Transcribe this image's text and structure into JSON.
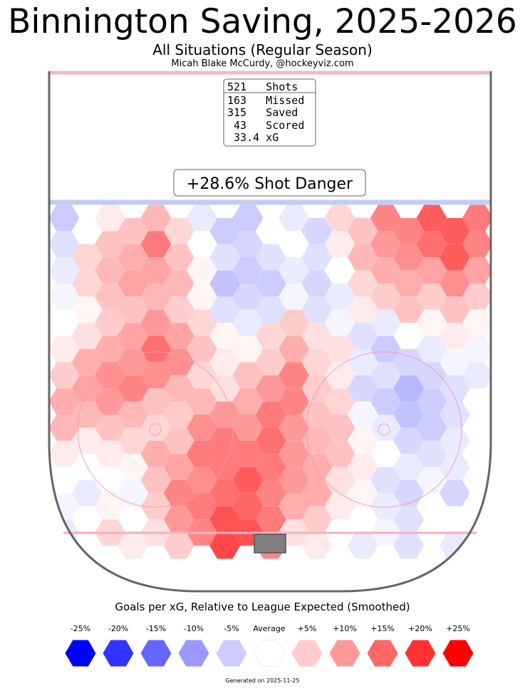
{
  "header": {
    "title": "Binnington Saving, 2025-2026",
    "subtitle": "All Situations (Regular Season)",
    "byline": "Micah Blake McCurdy, @hockeyviz.com"
  },
  "stats_box": {
    "rows": [
      "521   Shots",
      "163   Missed",
      "315   Saved",
      " 43   Scored",
      " 33.4 xG"
    ]
  },
  "danger_label": "+28.6% Shot Danger",
  "legend": {
    "title": "Goals per xG, Relative to League Expected (Smoothed)",
    "items": [
      {
        "label": "-25%",
        "color": "#0000ff"
      },
      {
        "label": "-20%",
        "color": "#3333ff"
      },
      {
        "label": "-15%",
        "color": "#6666ff"
      },
      {
        "label": "-10%",
        "color": "#9999ff"
      },
      {
        "label": "-5%",
        "color": "#ccccff"
      },
      {
        "label": "Average",
        "color": "#ffffff"
      },
      {
        "label": "+5%",
        "color": "#ffcccc"
      },
      {
        "label": "+10%",
        "color": "#ff9999"
      },
      {
        "label": "+15%",
        "color": "#ff6666"
      },
      {
        "label": "+20%",
        "color": "#ff3333"
      },
      {
        "label": "+25%",
        "color": "#ff0000"
      }
    ]
  },
  "footer": {
    "generated": "Generated on 2025-11-25"
  },
  "chart_data": {
    "type": "heatmap",
    "title": "Binnington Saving, 2025-2026",
    "metric": "Goals per xG, relative to league expected (smoothed), percent",
    "color_scale": {
      "min": -25,
      "max": 25,
      "neutral": 0
    },
    "columns": 19,
    "rows_per_col": 13,
    "values_by_column": [
      [
        -5,
        -3,
        -2,
        -1,
        0,
        2,
        5,
        8,
        7,
        2,
        0,
        -1,
        -2
      ],
      [
        0,
        4,
        4,
        1,
        3,
        8,
        9,
        7,
        2,
        0,
        -2,
        0,
        0
      ],
      [
        2,
        6,
        7,
        6,
        5,
        8,
        11,
        10,
        6,
        2,
        0,
        1,
        4
      ],
      [
        6,
        8,
        9,
        6,
        9,
        10,
        12,
        7,
        4,
        1,
        -1,
        0,
        2
      ],
      [
        7,
        13,
        9,
        7,
        10,
        14,
        11,
        6,
        4,
        8,
        6,
        5,
        3
      ],
      [
        4,
        6,
        7,
        5,
        9,
        11,
        7,
        5,
        6,
        9,
        12,
        10,
        5
      ],
      [
        -2,
        0,
        1,
        1,
        4,
        6,
        4,
        7,
        11,
        13,
        11,
        13,
        12
      ],
      [
        -5,
        -3,
        -6,
        -3,
        1,
        2,
        3,
        10,
        13,
        13,
        14,
        17,
        18
      ],
      [
        -5,
        -4,
        -5,
        -4,
        -2,
        1,
        6,
        8,
        10,
        13,
        16,
        15,
        17
      ],
      [
        0,
        -3,
        -5,
        -3,
        4,
        5,
        10,
        13,
        14,
        13,
        12,
        13,
        12
      ],
      [
        -2,
        0,
        -2,
        -1,
        5,
        8,
        12,
        12,
        10,
        10,
        10,
        8,
        3
      ],
      [
        -4,
        -3,
        -4,
        -3,
        3,
        4,
        5,
        6,
        7,
        8,
        8,
        5,
        2
      ],
      [
        4,
        2,
        0,
        -2,
        -1,
        3,
        2,
        4,
        6,
        6,
        3,
        2,
        0
      ],
      [
        6,
        7,
        4,
        2,
        -3,
        -2,
        -4,
        -1,
        1,
        2,
        1,
        0,
        -2
      ],
      [
        12,
        10,
        8,
        5,
        -2,
        -5,
        -3,
        -5,
        -2,
        0,
        -3,
        -2,
        -1
      ],
      [
        12,
        11,
        8,
        6,
        0,
        -4,
        -7,
        -6,
        -4,
        -2,
        -4,
        -3,
        -3
      ],
      [
        16,
        14,
        9,
        5,
        1,
        -2,
        -4,
        -5,
        -5,
        -3,
        -1,
        0,
        0
      ],
      [
        16,
        16,
        11,
        6,
        2,
        -1,
        -3,
        -3,
        -2,
        -2,
        -4,
        0,
        -2
      ],
      [
        13,
        12,
        9,
        5,
        1,
        -1,
        -2,
        0,
        0,
        0,
        0,
        0,
        0
      ]
    ]
  }
}
